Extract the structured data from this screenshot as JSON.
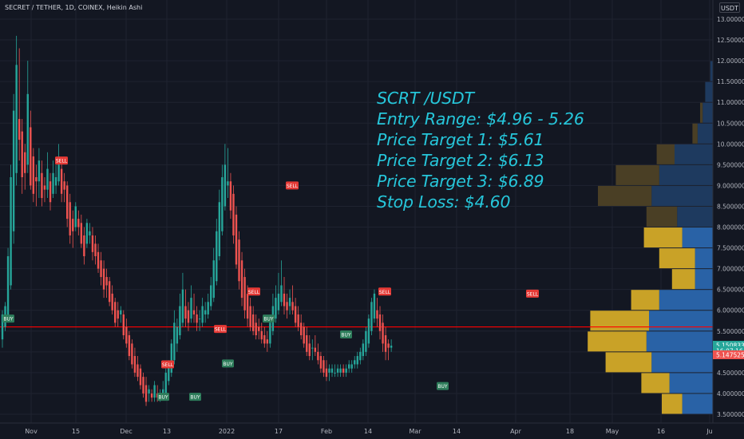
{
  "header": {
    "symbol": "SECRET / TETHER, 1D, COINEX, Heikin Ashi",
    "currency": "USDT"
  },
  "annotation": {
    "lines": [
      "SCRT /USDT",
      "Entry Range: $4.96 - 5.26",
      "Price Target 1: $5.61",
      "Price Target 2: $6.13",
      "Price Target 3: $6.89",
      "Stop Loss: $4.60"
    ]
  },
  "colors": {
    "background": "#131722",
    "bull": "#26a69a",
    "bear": "#ef5350",
    "resistance_line": "#ff0000",
    "annotation": "#26c6da",
    "profile_value_area_up": "#2962a6",
    "profile_value_area_down": "#c9a227",
    "profile_up": "#1e3a5f",
    "profile_down": "#4a3f25"
  },
  "chart_data": {
    "type": "candlestick",
    "style": "Heikin Ashi",
    "interval": "1D",
    "exchange": "COINEX",
    "y_axis": {
      "scale": "linear",
      "ylim": [
        3.5,
        13.0
      ],
      "tick_labels": [
        "13.000000",
        "12.500000",
        "12.000000",
        "11.500000",
        "11.000000",
        "10.500000",
        "10.000000",
        "9.500000",
        "9.000000",
        "8.500000",
        "8.000000",
        "7.500000",
        "7.000000",
        "6.500000",
        "6.000000",
        "5.500000",
        "5.000000",
        "4.500000",
        "4.000000",
        "3.500000"
      ],
      "tick_values": [
        13.0,
        12.5,
        12.0,
        11.5,
        11.0,
        10.5,
        10.0,
        9.5,
        9.0,
        8.5,
        8.0,
        7.5,
        7.0,
        6.5,
        6.0,
        5.5,
        5.0,
        4.5,
        4.0,
        3.5
      ]
    },
    "x_axis": {
      "tick_labels": [
        "Nov",
        "15",
        "Dec",
        "13",
        "2022",
        "17",
        "Feb",
        "14",
        "Mar",
        "14",
        "Apr",
        "18",
        "May",
        "16",
        "Ju"
      ]
    },
    "horizontal_line": {
      "value": 5.6,
      "color": "#ff0000"
    },
    "price_labels": [
      {
        "label": "5.150833",
        "value": 5.15,
        "color": "#26a69a"
      },
      {
        "label": "16:07:16",
        "value": 5.02,
        "color": "#26a69a"
      },
      {
        "label": "5.147525",
        "value": 4.92,
        "color": "#ef5350"
      }
    ],
    "signals": [
      {
        "label": "BUY",
        "value": 5.8,
        "type": "buy"
      },
      {
        "label": "SELL",
        "value": 9.6,
        "type": "sell"
      },
      {
        "label": "SELL",
        "value": 4.7,
        "type": "sell"
      },
      {
        "label": "BUY",
        "value": 3.92,
        "type": "buy"
      },
      {
        "label": "BUY",
        "value": 3.92,
        "type": "buy"
      },
      {
        "label": "SELL",
        "value": 5.55,
        "type": "sell"
      },
      {
        "label": "BUY",
        "value": 4.72,
        "type": "buy"
      },
      {
        "label": "SELL",
        "value": 6.45,
        "type": "sell"
      },
      {
        "label": "BUY",
        "value": 5.8,
        "type": "buy"
      },
      {
        "label": "SELL",
        "value": 9.0,
        "type": "sell"
      },
      {
        "label": "BUY",
        "value": 5.42,
        "type": "buy"
      },
      {
        "label": "SELL",
        "value": 6.45,
        "type": "sell"
      },
      {
        "label": "BUY",
        "value": 4.18,
        "type": "buy"
      },
      {
        "label": "SELL",
        "value": 6.4,
        "type": "sell"
      }
    ],
    "volume_profile": [
      {
        "price": 12.25,
        "up": 0,
        "down": 0,
        "va": false
      },
      {
        "price": 11.75,
        "up": 1,
        "down": 0,
        "va": false
      },
      {
        "price": 11.25,
        "up": 3,
        "down": 0,
        "va": false
      },
      {
        "price": 10.75,
        "up": 4,
        "down": 1,
        "va": false
      },
      {
        "price": 10.25,
        "up": 6,
        "down": 2,
        "va": false
      },
      {
        "price": 9.75,
        "up": 15,
        "down": 7,
        "va": false
      },
      {
        "price": 9.25,
        "up": 21,
        "down": 17,
        "va": false
      },
      {
        "price": 8.75,
        "up": 24,
        "down": 21,
        "va": false
      },
      {
        "price": 8.25,
        "up": 14,
        "down": 12,
        "va": false
      },
      {
        "price": 7.75,
        "up": 12,
        "down": 15,
        "va": true
      },
      {
        "price": 7.25,
        "up": 7,
        "down": 14,
        "va": true
      },
      {
        "price": 6.75,
        "up": 7,
        "down": 9,
        "va": true
      },
      {
        "price": 6.25,
        "up": 21,
        "down": 11,
        "va": true
      },
      {
        "price": 5.75,
        "up": 25,
        "down": 23,
        "va": true
      },
      {
        "price": 5.25,
        "up": 26,
        "down": 23,
        "va": true
      },
      {
        "price": 4.75,
        "up": 24,
        "down": 18,
        "va": true
      },
      {
        "price": 4.25,
        "up": 17,
        "down": 11,
        "va": true
      },
      {
        "price": 3.75,
        "up": 12,
        "down": 8,
        "va": true
      }
    ],
    "series": [
      {
        "values": [
          [
            5.3,
            6.0,
            5.1,
            5.9
          ],
          [
            5.6,
            6.2,
            5.5,
            6.1
          ],
          [
            5.8,
            7.5,
            5.7,
            7.3
          ],
          [
            6.6,
            9.5,
            6.5,
            9.2
          ],
          [
            7.9,
            11.2,
            7.6,
            10.8
          ],
          [
            9.3,
            12.6,
            9.0,
            11.9
          ],
          [
            10.6,
            12.3,
            9.6,
            10.1
          ],
          [
            10.3,
            10.6,
            8.8,
            9.2
          ],
          [
            9.8,
            10.0,
            8.9,
            9.3
          ],
          [
            9.5,
            12.0,
            9.3,
            11.2
          ],
          [
            10.4,
            10.8,
            8.9,
            9.0
          ],
          [
            9.7,
            9.9,
            8.6,
            8.8
          ],
          [
            9.2,
            9.5,
            8.5,
            9.1
          ],
          [
            9.1,
            9.9,
            8.7,
            9.6
          ],
          [
            9.3,
            9.6,
            8.5,
            8.7
          ],
          [
            9.0,
            9.2,
            8.6,
            8.9
          ],
          [
            8.9,
            9.8,
            8.7,
            9.4
          ],
          [
            9.1,
            9.3,
            8.4,
            8.6
          ],
          [
            8.8,
            9.6,
            8.7,
            9.3
          ],
          [
            9.0,
            9.5,
            8.8,
            9.2
          ],
          [
            9.1,
            10.0,
            9.0,
            9.7
          ],
          [
            9.4,
            9.6,
            8.6,
            8.8
          ],
          [
            9.1,
            9.3,
            8.6,
            8.9
          ],
          [
            9.0,
            9.1,
            8.0,
            8.2
          ],
          [
            8.6,
            8.8,
            7.6,
            7.8
          ],
          [
            8.2,
            8.4,
            7.5,
            7.9
          ],
          [
            8.0,
            8.6,
            7.9,
            8.5
          ],
          [
            8.2,
            8.4,
            7.8,
            8.0
          ],
          [
            8.1,
            8.3,
            7.5,
            7.6
          ],
          [
            7.8,
            8.0,
            7.1,
            7.3
          ],
          [
            7.6,
            8.2,
            7.5,
            8.1
          ],
          [
            7.8,
            8.1,
            7.6,
            7.9
          ],
          [
            7.8,
            8.0,
            7.2,
            7.4
          ],
          [
            7.6,
            7.8,
            7.1,
            7.3
          ],
          [
            7.4,
            7.6,
            6.9,
            7.0
          ],
          [
            7.2,
            7.4,
            6.6,
            6.8
          ],
          [
            7.0,
            7.2,
            6.3,
            6.5
          ],
          [
            6.8,
            7.0,
            6.3,
            6.6
          ],
          [
            6.7,
            6.8,
            6.1,
            6.2
          ],
          [
            6.4,
            6.6,
            5.9,
            6.0
          ],
          [
            6.2,
            6.3,
            5.6,
            5.7
          ],
          [
            6.0,
            6.2,
            5.6,
            5.8
          ],
          [
            5.9,
            6.1,
            5.7,
            6.0
          ],
          [
            5.9,
            6.0,
            5.3,
            5.4
          ],
          [
            5.6,
            5.8,
            5.1,
            5.2
          ],
          [
            5.4,
            5.5,
            4.8,
            4.9
          ],
          [
            5.2,
            5.3,
            4.6,
            4.7
          ],
          [
            4.9,
            5.1,
            4.4,
            4.5
          ],
          [
            4.7,
            4.9,
            4.3,
            4.4
          ],
          [
            4.6,
            4.7,
            4.1,
            4.2
          ],
          [
            4.4,
            4.5,
            3.9,
            4.0
          ],
          [
            4.2,
            4.4,
            3.7,
            3.8
          ],
          [
            4.0,
            4.2,
            3.8,
            4.1
          ],
          [
            4.0,
            4.1,
            3.8,
            3.9
          ],
          [
            3.9,
            4.3,
            3.8,
            4.2
          ],
          [
            4.0,
            4.2,
            3.8,
            3.9
          ],
          [
            4.0,
            4.1,
            3.8,
            4.0
          ],
          [
            4.0,
            4.3,
            3.9,
            4.1
          ],
          [
            4.0,
            4.6,
            3.9,
            4.5
          ],
          [
            4.3,
            4.8,
            4.2,
            4.7
          ],
          [
            4.5,
            5.3,
            4.4,
            5.2
          ],
          [
            4.8,
            6.0,
            4.7,
            5.7
          ],
          [
            5.2,
            5.8,
            5.0,
            5.6
          ],
          [
            5.4,
            6.4,
            5.3,
            6.1
          ],
          [
            5.7,
            6.9,
            5.6,
            6.5
          ],
          [
            6.1,
            6.5,
            5.6,
            5.8
          ],
          [
            6.0,
            6.2,
            5.5,
            5.7
          ],
          [
            5.8,
            6.6,
            5.7,
            6.3
          ],
          [
            6.0,
            6.4,
            5.7,
            5.9
          ],
          [
            5.9,
            6.1,
            5.5,
            5.7
          ],
          [
            5.8,
            6.0,
            5.5,
            5.8
          ],
          [
            5.7,
            6.3,
            5.6,
            6.1
          ],
          [
            5.9,
            6.2,
            5.7,
            6.0
          ],
          [
            5.9,
            6.4,
            5.8,
            6.2
          ],
          [
            6.1,
            6.8,
            6.0,
            6.6
          ],
          [
            6.3,
            7.5,
            6.2,
            7.2
          ],
          [
            6.7,
            8.2,
            6.6,
            7.9
          ],
          [
            7.3,
            8.9,
            7.2,
            8.6
          ],
          [
            7.9,
            9.5,
            7.8,
            9.2
          ],
          [
            8.5,
            10.0,
            8.4,
            9.5
          ],
          [
            9.0,
            9.9,
            8.7,
            9.1
          ],
          [
            9.1,
            9.3,
            8.2,
            8.4
          ],
          [
            8.8,
            9.0,
            7.6,
            7.8
          ],
          [
            8.3,
            8.5,
            7.0,
            7.1
          ],
          [
            7.7,
            7.9,
            6.5,
            6.7
          ],
          [
            7.2,
            7.4,
            6.1,
            6.3
          ],
          [
            6.8,
            7.0,
            5.8,
            6.0
          ],
          [
            6.4,
            6.6,
            5.6,
            5.8
          ],
          [
            6.1,
            6.3,
            5.5,
            5.6
          ],
          [
            5.9,
            6.1,
            5.4,
            5.5
          ],
          [
            5.7,
            5.9,
            5.3,
            5.4
          ],
          [
            5.6,
            5.8,
            5.3,
            5.5
          ],
          [
            5.5,
            5.7,
            5.2,
            5.3
          ],
          [
            5.4,
            5.6,
            5.1,
            5.2
          ],
          [
            5.3,
            5.5,
            5.0,
            5.2
          ],
          [
            5.2,
            5.9,
            5.1,
            5.7
          ],
          [
            5.5,
            6.4,
            5.4,
            6.1
          ],
          [
            5.8,
            6.6,
            5.7,
            6.3
          ],
          [
            6.0,
            6.9,
            5.9,
            6.4
          ],
          [
            6.2,
            7.2,
            6.1,
            6.6
          ],
          [
            6.4,
            6.8,
            5.9,
            6.1
          ],
          [
            6.2,
            6.4,
            5.8,
            6.0
          ],
          [
            6.1,
            6.5,
            5.9,
            6.3
          ],
          [
            6.2,
            6.6,
            5.9,
            6.0
          ],
          [
            6.1,
            6.3,
            5.6,
            5.7
          ],
          [
            5.9,
            6.1,
            5.5,
            5.6
          ],
          [
            5.7,
            5.9,
            5.3,
            5.4
          ],
          [
            5.6,
            5.7,
            5.1,
            5.2
          ],
          [
            5.4,
            5.6,
            4.9,
            5.0
          ],
          [
            5.2,
            5.4,
            4.8,
            4.9
          ],
          [
            5.1,
            5.3,
            4.8,
            5.1
          ],
          [
            5.1,
            5.4,
            4.9,
            5.0
          ],
          [
            5.0,
            5.2,
            4.7,
            4.8
          ],
          [
            4.9,
            5.0,
            4.5,
            4.6
          ],
          [
            4.8,
            4.9,
            4.4,
            4.5
          ],
          [
            4.6,
            4.8,
            4.3,
            4.4
          ],
          [
            4.5,
            4.7,
            4.3,
            4.6
          ],
          [
            4.5,
            4.7,
            4.4,
            4.6
          ],
          [
            4.5,
            4.7,
            4.4,
            4.5
          ],
          [
            4.5,
            4.7,
            4.4,
            4.6
          ],
          [
            4.5,
            4.7,
            4.4,
            4.6
          ],
          [
            4.6,
            4.7,
            4.4,
            4.5
          ],
          [
            4.5,
            4.7,
            4.4,
            4.6
          ],
          [
            4.6,
            4.8,
            4.5,
            4.7
          ],
          [
            4.6,
            4.8,
            4.5,
            4.7
          ],
          [
            4.7,
            4.9,
            4.6,
            4.8
          ],
          [
            4.7,
            5.0,
            4.6,
            4.9
          ],
          [
            4.8,
            5.1,
            4.7,
            5.0
          ],
          [
            4.9,
            5.3,
            4.8,
            5.2
          ],
          [
            5.0,
            5.6,
            4.9,
            5.5
          ],
          [
            5.2,
            5.9,
            5.1,
            5.8
          ],
          [
            5.5,
            6.3,
            5.4,
            6.2
          ],
          [
            5.8,
            6.5,
            5.7,
            6.4
          ],
          [
            6.0,
            6.3,
            5.6,
            5.8
          ],
          [
            5.9,
            6.1,
            5.3,
            5.5
          ],
          [
            5.7,
            5.9,
            5.0,
            5.2
          ],
          [
            5.4,
            5.6,
            4.8,
            5.0
          ],
          [
            5.2,
            5.3,
            4.8,
            5.1
          ],
          [
            5.1,
            5.3,
            5.0,
            5.15
          ]
        ]
      }
    ],
    "series_format": "OHLC"
  }
}
